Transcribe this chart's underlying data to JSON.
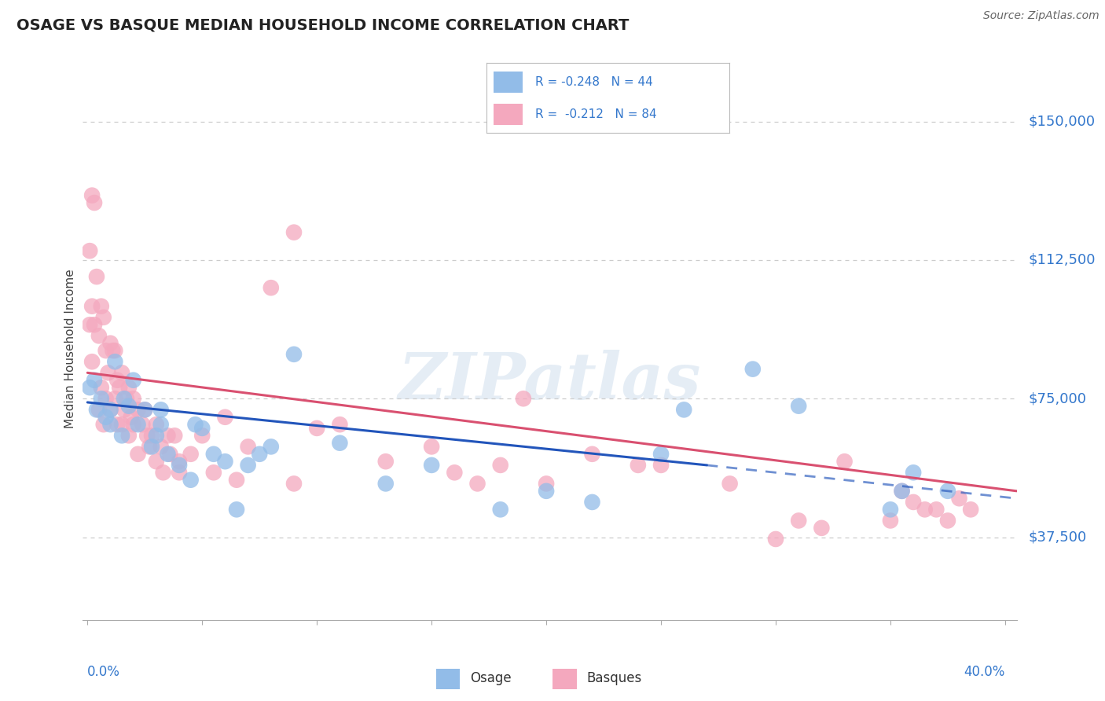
{
  "title": "OSAGE VS BASQUE MEDIAN HOUSEHOLD INCOME CORRELATION CHART",
  "source_text": "Source: ZipAtlas.com",
  "ylabel": "Median Household Income",
  "ytick_labels": [
    "$37,500",
    "$75,000",
    "$112,500",
    "$150,000"
  ],
  "ytick_values": [
    37500,
    75000,
    112500,
    150000
  ],
  "ymin": 15000,
  "ymax": 162000,
  "xmin": -0.002,
  "xmax": 0.405,
  "watermark": "ZIPatlas",
  "blue_color": "#92bce8",
  "pink_color": "#f4a8be",
  "blue_line_color": "#2255bb",
  "pink_line_color": "#d95070",
  "grid_color": "#cccccc",
  "label_color": "#3377cc",
  "title_color": "#222222",
  "legend_r1": "R = -0.248   N = 44",
  "legend_r2": "R =  -0.212   N = 84",
  "bottom_legend_osage": "Osage",
  "bottom_legend_basques": "Basques",
  "osage_x": [
    0.001,
    0.003,
    0.004,
    0.006,
    0.008,
    0.01,
    0.01,
    0.012,
    0.015,
    0.016,
    0.018,
    0.02,
    0.022,
    0.025,
    0.028,
    0.03,
    0.032,
    0.032,
    0.035,
    0.04,
    0.045,
    0.047,
    0.05,
    0.055,
    0.06,
    0.065,
    0.07,
    0.075,
    0.08,
    0.09,
    0.11,
    0.13,
    0.15,
    0.18,
    0.2,
    0.22,
    0.25,
    0.26,
    0.29,
    0.31,
    0.35,
    0.355,
    0.36,
    0.375
  ],
  "osage_y": [
    78000,
    80000,
    72000,
    75000,
    70000,
    72000,
    68000,
    85000,
    65000,
    75000,
    73000,
    80000,
    68000,
    72000,
    62000,
    65000,
    68000,
    72000,
    60000,
    57000,
    53000,
    68000,
    67000,
    60000,
    58000,
    45000,
    57000,
    60000,
    62000,
    87000,
    63000,
    52000,
    57000,
    45000,
    50000,
    47000,
    60000,
    72000,
    83000,
    73000,
    45000,
    50000,
    55000,
    50000
  ],
  "basque_x": [
    0.001,
    0.001,
    0.002,
    0.002,
    0.002,
    0.003,
    0.003,
    0.004,
    0.005,
    0.005,
    0.006,
    0.006,
    0.007,
    0.007,
    0.008,
    0.008,
    0.009,
    0.01,
    0.01,
    0.011,
    0.012,
    0.012,
    0.013,
    0.013,
    0.014,
    0.015,
    0.015,
    0.016,
    0.017,
    0.018,
    0.018,
    0.019,
    0.02,
    0.02,
    0.022,
    0.022,
    0.024,
    0.025,
    0.026,
    0.027,
    0.028,
    0.03,
    0.03,
    0.032,
    0.033,
    0.035,
    0.036,
    0.038,
    0.04,
    0.04,
    0.045,
    0.05,
    0.055,
    0.06,
    0.065,
    0.07,
    0.08,
    0.09,
    0.09,
    0.1,
    0.11,
    0.13,
    0.15,
    0.16,
    0.17,
    0.18,
    0.19,
    0.2,
    0.22,
    0.24,
    0.25,
    0.28,
    0.3,
    0.31,
    0.32,
    0.33,
    0.35,
    0.355,
    0.36,
    0.365,
    0.37,
    0.375,
    0.38,
    0.385
  ],
  "basque_y": [
    95000,
    115000,
    130000,
    100000,
    85000,
    128000,
    95000,
    108000,
    92000,
    72000,
    100000,
    78000,
    97000,
    68000,
    88000,
    75000,
    82000,
    90000,
    72000,
    88000,
    88000,
    75000,
    80000,
    68000,
    78000,
    82000,
    68000,
    72000,
    75000,
    78000,
    65000,
    70000,
    75000,
    68000,
    72000,
    60000,
    68000,
    72000,
    65000,
    62000,
    65000,
    68000,
    58000,
    62000,
    55000,
    65000,
    60000,
    65000,
    58000,
    55000,
    60000,
    65000,
    55000,
    70000,
    53000,
    62000,
    105000,
    120000,
    52000,
    67000,
    68000,
    58000,
    62000,
    55000,
    52000,
    57000,
    75000,
    52000,
    60000,
    57000,
    57000,
    52000,
    37000,
    42000,
    40000,
    58000,
    42000,
    50000,
    47000,
    45000,
    45000,
    42000,
    48000,
    45000
  ]
}
